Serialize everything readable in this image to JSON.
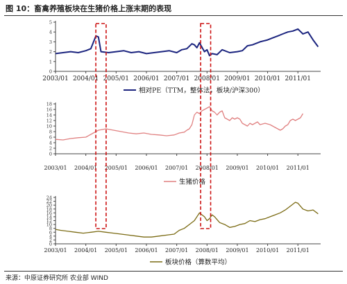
{
  "title": "图 10：畜禽养殖板块在生猪价格上涨末期的表现",
  "source": "来源：中原证券研究所 农业部 WIND",
  "colors": {
    "pe": "#1a237e",
    "pig": "#e08080",
    "price": "#7a6a12",
    "highlight": "#cc1111",
    "axis": "#444444"
  },
  "chart_data": [
    {
      "type": "line",
      "series": [
        {
          "name": "相对PE（TTM，整体法，板块/沪深300）",
          "x": [
            "2003/01",
            "2003/04",
            "2003/07",
            "2003/10",
            "2004/01",
            "2004/03",
            "2004/05",
            "2004/06",
            "2004/07",
            "2004/10",
            "2005/01",
            "2005/04",
            "2005/07",
            "2005/10",
            "2006/01",
            "2006/04",
            "2006/07",
            "2006/10",
            "2007/01",
            "2007/03",
            "2007/05",
            "2007/07",
            "2007/08",
            "2007/09",
            "2007/10",
            "2007/12",
            "2008/01",
            "2008/02",
            "2008/03",
            "2008/05",
            "2008/07",
            "2008/10",
            "2009/01",
            "2009/03",
            "2009/05",
            "2009/07",
            "2009/10",
            "2010/01",
            "2010/03",
            "2010/05",
            "2010/07",
            "2010/09",
            "2010/11",
            "2011/01",
            "2011/03",
            "2011/05",
            "2011/07",
            "2011/09"
          ],
          "values": [
            1.8,
            1.9,
            2.0,
            1.9,
            2.1,
            2.3,
            3.6,
            3.5,
            2.0,
            1.9,
            2.0,
            2.1,
            1.9,
            2.0,
            1.8,
            1.9,
            2.0,
            2.1,
            1.9,
            2.2,
            2.3,
            2.8,
            2.7,
            2.4,
            2.9,
            2.0,
            2.2,
            1.6,
            1.8,
            1.7,
            2.2,
            1.9,
            2.0,
            2.1,
            2.6,
            2.7,
            3.0,
            3.2,
            3.4,
            3.6,
            3.8,
            4.0,
            4.1,
            4.3,
            3.8,
            4.0,
            3.2,
            2.5
          ]
        }
      ],
      "xticks": [
        "2003/01",
        "2004/01",
        "2005/01",
        "2006/01",
        "2007/01",
        "2008/01",
        "2009/01",
        "2010/01",
        "2011/01"
      ],
      "yticks": [
        0,
        1,
        2,
        3,
        4,
        5
      ],
      "ylim": [
        0,
        5
      ],
      "legend": "bottom"
    },
    {
      "type": "line",
      "series": [
        {
          "name": "生猪价格",
          "x": [
            "2003/01",
            "2003/04",
            "2003/07",
            "2003/10",
            "2004/01",
            "2004/03",
            "2004/06",
            "2004/09",
            "2004/12",
            "2005/03",
            "2005/06",
            "2005/09",
            "2005/12",
            "2006/03",
            "2006/06",
            "2006/09",
            "2006/12",
            "2007/02",
            "2007/04",
            "2007/05",
            "2007/06",
            "2007/07",
            "2007/08",
            "2007/09",
            "2007/10",
            "2007/11",
            "2007/12",
            "2008/01",
            "2008/02",
            "2008/03",
            "2008/04",
            "2008/05",
            "2008/06",
            "2008/07",
            "2008/08",
            "2008/09",
            "2008/10",
            "2008/11",
            "2008/12",
            "2009/01",
            "2009/02",
            "2009/03",
            "2009/04",
            "2009/05",
            "2009/06",
            "2009/07",
            "2009/08",
            "2009/09",
            "2009/10",
            "2009/12",
            "2010/02",
            "2010/04",
            "2010/05",
            "2010/06",
            "2010/07",
            "2010/08",
            "2010/09",
            "2010/10",
            "2010/11",
            "2010/12",
            "2011/01",
            "2011/02",
            "2011/03"
          ],
          "values": [
            5.2,
            5.0,
            5.5,
            5.8,
            6.0,
            7.0,
            8.5,
            9.0,
            8.5,
            8.0,
            7.5,
            7.2,
            7.5,
            7.0,
            6.8,
            6.5,
            6.8,
            7.5,
            7.8,
            8.5,
            9.0,
            10.5,
            14.0,
            15.0,
            14.5,
            15.5,
            16.0,
            16.5,
            17.0,
            15.5,
            15.0,
            14.0,
            15.0,
            15.5,
            13.0,
            12.5,
            12.0,
            13.0,
            12.5,
            13.0,
            12.5,
            11.0,
            10.5,
            10.0,
            11.0,
            10.5,
            11.0,
            11.5,
            10.5,
            11.0,
            10.5,
            9.5,
            9.0,
            8.5,
            9.0,
            10.0,
            10.5,
            12.0,
            12.5,
            12.0,
            12.5,
            13.0,
            14.5
          ]
        }
      ],
      "xticks": [
        "2003/01",
        "2004/01",
        "2005/01",
        "2006/01",
        "2007/01",
        "2008/01",
        "2009/01",
        "2010/01",
        "2011/01"
      ],
      "yticks": [
        0,
        2,
        4,
        6,
        8,
        10,
        12,
        14,
        16,
        18
      ],
      "ylim": [
        0,
        18
      ],
      "legend": "bottom"
    },
    {
      "type": "line",
      "series": [
        {
          "name": "板块价格（算数平均）",
          "x": [
            "2003/01",
            "2003/03",
            "2003/06",
            "2003/09",
            "2003/12",
            "2004/03",
            "2004/06",
            "2004/09",
            "2004/12",
            "2005/03",
            "2005/06",
            "2005/09",
            "2005/12",
            "2006/03",
            "2006/06",
            "2006/09",
            "2006/12",
            "2007/02",
            "2007/04",
            "2007/06",
            "2007/08",
            "2007/10",
            "2007/11",
            "2007/12",
            "2008/01",
            "2008/02",
            "2008/03",
            "2008/04",
            "2008/06",
            "2008/08",
            "2008/10",
            "2008/12",
            "2009/02",
            "2009/04",
            "2009/06",
            "2009/08",
            "2009/10",
            "2009/12",
            "2010/02",
            "2010/04",
            "2010/06",
            "2010/08",
            "2010/10",
            "2010/12",
            "2011/01",
            "2011/03",
            "2011/05",
            "2011/07",
            "2011/09"
          ],
          "values": [
            7.5,
            7.0,
            6.5,
            6.0,
            5.5,
            6.0,
            6.5,
            6.0,
            5.5,
            5.0,
            4.5,
            4.0,
            3.5,
            3.5,
            4.0,
            4.5,
            5.0,
            7.0,
            8.0,
            10.0,
            12.0,
            16.0,
            15.0,
            14.0,
            12.0,
            13.0,
            15.0,
            14.0,
            11.0,
            10.0,
            8.5,
            9.0,
            10.0,
            10.5,
            12.0,
            11.5,
            12.5,
            13.0,
            14.0,
            15.0,
            16.0,
            17.5,
            19.5,
            21.5,
            21.0,
            18.0,
            17.0,
            17.5,
            15.5
          ]
        }
      ],
      "xticks": [
        "2003/01",
        "2004/01",
        "2005/01",
        "2006/01",
        "2007/01",
        "2008/01",
        "2009/01",
        "2010/01",
        "2011/01"
      ],
      "yticks": [
        0,
        2,
        4,
        6,
        8,
        10,
        12,
        14,
        16,
        18,
        20,
        22,
        24
      ],
      "ylim": [
        0,
        24
      ],
      "legend": "bottom"
    }
  ]
}
